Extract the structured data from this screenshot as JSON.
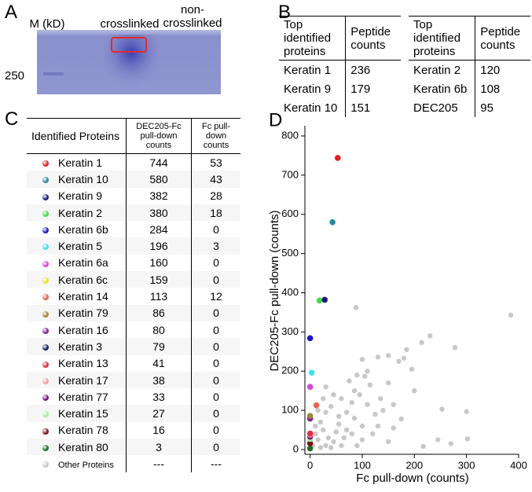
{
  "panel_a": {
    "letter": "A",
    "lane_labels": [
      "M (kD)",
      "crosslinked",
      "non-crosslinked"
    ],
    "marker_label": "250"
  },
  "panel_b": {
    "letter": "B",
    "tables": [
      {
        "headers": [
          "Top identified proteins",
          "Peptide counts"
        ],
        "rows": [
          [
            "Keratin 1",
            236
          ],
          [
            "Keratin 9",
            179
          ],
          [
            "Keratin 10",
            151
          ]
        ]
      },
      {
        "headers": [
          "Top identified proteins",
          "Peptide counts"
        ],
        "rows": [
          [
            "Keratin 2",
            120
          ],
          [
            "Keratin 6b",
            108
          ],
          [
            "DEC205",
            95
          ]
        ]
      }
    ]
  },
  "panel_c": {
    "letter": "C",
    "headers": [
      "Identified Proteins",
      "DEC205-Fc pull-down counts",
      "Fc pull-down counts"
    ],
    "other_counts": [
      "---",
      "---"
    ]
  },
  "chart_data": {
    "type": "scatter",
    "letter": "D",
    "x_label": "Fc pull-down (counts)",
    "y_label": "DEC205-Fc pull-down (counts)",
    "xlim": [
      -10,
      400
    ],
    "ylim": [
      -12,
      826
    ],
    "xticks": [
      0,
      100,
      200,
      300,
      400
    ],
    "yticks": [
      0,
      100,
      200,
      300,
      400,
      500,
      600,
      700,
      800
    ],
    "series": [
      {
        "name": "Keratin 1",
        "color": "#e02020",
        "x": [
          53
        ],
        "values": [
          744
        ]
      },
      {
        "name": "Keratin 10",
        "color": "#2a8a9a",
        "x": [
          43
        ],
        "values": [
          580
        ]
      },
      {
        "name": "Keratin 9",
        "color": "#1a1a80",
        "x": [
          28
        ],
        "values": [
          382
        ]
      },
      {
        "name": "Keratin 2",
        "color": "#40e040",
        "x": [
          18
        ],
        "values": [
          380
        ]
      },
      {
        "name": "Keratin 6b",
        "color": "#1a1ac8",
        "x": [
          0
        ],
        "values": [
          284
        ]
      },
      {
        "name": "Keratin 5",
        "color": "#40e0f0",
        "x": [
          3
        ],
        "values": [
          196
        ]
      },
      {
        "name": "Keratin 6a",
        "color": "#e040e0",
        "x": [
          0
        ],
        "values": [
          160
        ]
      },
      {
        "name": "Keratin 6c",
        "color": "#f0e020",
        "x": [
          0
        ],
        "values": [
          159
        ]
      },
      {
        "name": "Keratin 14",
        "color": "#f06050",
        "x": [
          12
        ],
        "values": [
          113
        ]
      },
      {
        "name": "Keratin 79",
        "color": "#a08a30",
        "x": [
          0
        ],
        "values": [
          86
        ]
      },
      {
        "name": "Keratin 16",
        "color": "#8a20a0",
        "x": [
          0
        ],
        "values": [
          80
        ]
      },
      {
        "name": "Keratin 3",
        "color": "#102060",
        "x": [
          0
        ],
        "values": [
          79
        ]
      },
      {
        "name": "Keratin 13",
        "color": "#e03040",
        "x": [
          0
        ],
        "values": [
          41
        ]
      },
      {
        "name": "Keratin 17",
        "color": "#f0a0a0",
        "x": [
          0
        ],
        "values": [
          38
        ]
      },
      {
        "name": "Keratin 77",
        "color": "#801080",
        "x": [
          0
        ],
        "values": [
          33
        ]
      },
      {
        "name": "Keratin 15",
        "color": "#a0f0a0",
        "x": [
          0
        ],
        "values": [
          27
        ]
      },
      {
        "name": "Keratin 78",
        "color": "#801010",
        "x": [
          0
        ],
        "values": [
          16
        ]
      },
      {
        "name": "Keratin 80",
        "color": "#207020",
        "x": [
          0
        ],
        "values": [
          3
        ]
      },
      {
        "name": "Other Proteins",
        "color": "#c8c8c8",
        "x": [
          385,
          300,
          302,
          278,
          253,
          230,
          214,
          217,
          245,
          185,
          180,
          195,
          170,
          130,
          150,
          140,
          160,
          175,
          200,
          88,
          150,
          100,
          105,
          110,
          115,
          90,
          95,
          75,
          80,
          60,
          85,
          110,
          125,
          100,
          70,
          55,
          40,
          30,
          20,
          50,
          65,
          35,
          25,
          45,
          80,
          100,
          120,
          130,
          60,
          30,
          15,
          10,
          5,
          20,
          40,
          90,
          150,
          135,
          160,
          85,
          70,
          55,
          15,
          10,
          25,
          45,
          30,
          270
        ],
        "values": [
          343,
          97,
          27,
          260,
          103,
          290,
          273,
          8,
          25,
          255,
          233,
          205,
          225,
          236,
          170,
          100,
          55,
          78,
          150,
          362,
          240,
          230,
          187,
          200,
          165,
          190,
          140,
          175,
          120,
          130,
          80,
          115,
          90,
          60,
          95,
          65,
          110,
          95,
          70,
          45,
          30,
          30,
          50,
          20,
          40,
          25,
          40,
          60,
          10,
          10,
          25,
          40,
          10,
          5,
          5,
          10,
          20,
          130,
          115,
          150,
          50,
          85,
          100,
          60,
          130,
          140,
          160,
          15
        ]
      }
    ]
  }
}
